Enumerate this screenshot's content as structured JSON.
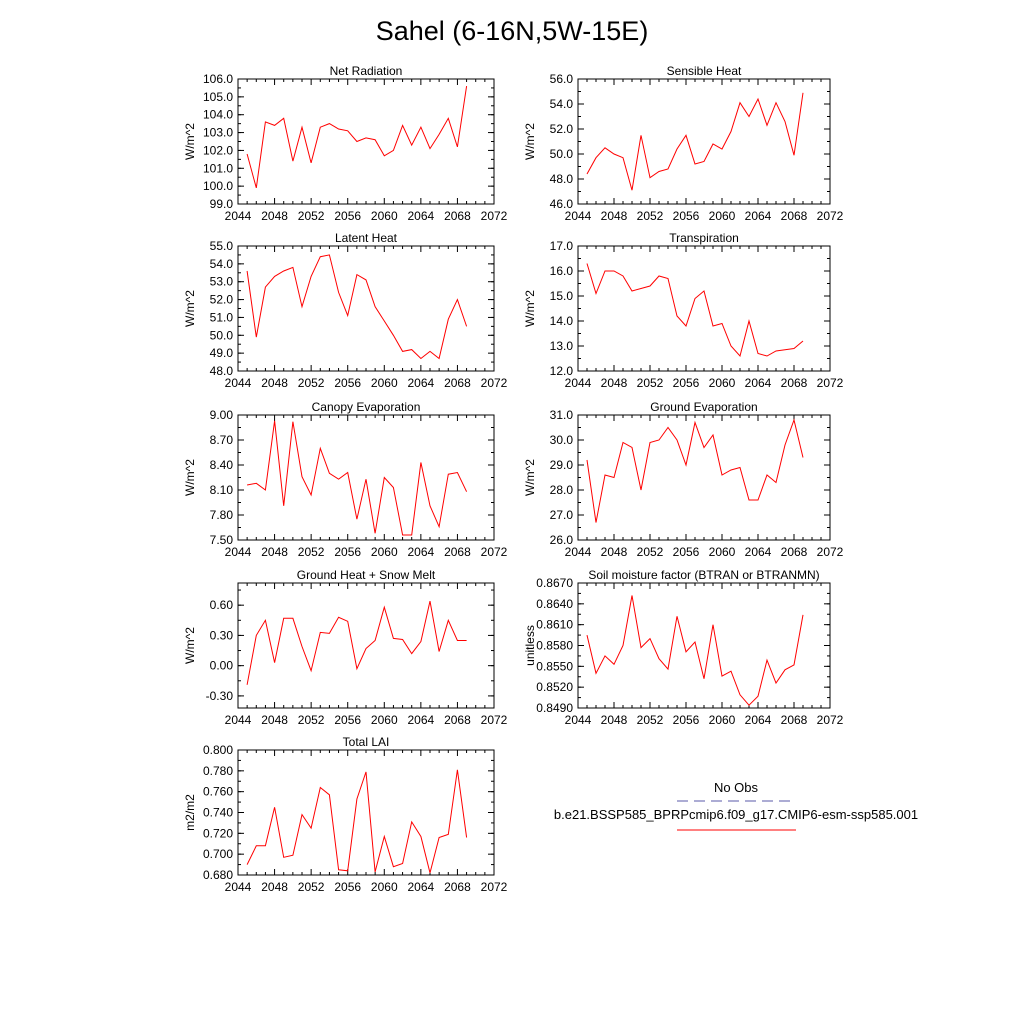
{
  "figure": {
    "title": "Sahel (6-16N,5W-15E)"
  },
  "legend": {
    "entries": [
      {
        "label": "No Obs",
        "color": "#5a5aa8",
        "style": "dashed"
      },
      {
        "label": "b.e21.BSSP585_BPRPcmip6.f09_g17.CMIP6-esm-ssp585.001",
        "color": "#ff0000",
        "style": "solid"
      }
    ]
  },
  "chart_data": [
    {
      "type": "line",
      "title": "Net Radiation",
      "ylabel": "W/m^2",
      "xlim": [
        2044,
        2072
      ],
      "ylim": [
        99.0,
        106.0
      ],
      "xticks": [
        "2044",
        "2048",
        "2052",
        "2056",
        "2060",
        "2064",
        "2068",
        "2072"
      ],
      "yticks": [
        "99.0",
        "100.0",
        "101.0",
        "102.0",
        "103.0",
        "104.0",
        "105.0",
        "106.0"
      ],
      "x": [
        2045,
        2046,
        2047,
        2048,
        2049,
        2050,
        2051,
        2052,
        2053,
        2054,
        2055,
        2056,
        2057,
        2058,
        2059,
        2060,
        2061,
        2062,
        2063,
        2064,
        2065,
        2066,
        2067,
        2068,
        2069
      ],
      "values": [
        101.8,
        99.9,
        103.6,
        103.4,
        103.8,
        101.4,
        103.3,
        101.3,
        103.3,
        103.5,
        103.2,
        103.1,
        102.5,
        102.7,
        102.6,
        101.7,
        102.0,
        103.4,
        102.3,
        103.3,
        102.1,
        102.9,
        103.8,
        102.2,
        105.6
      ],
      "color": "#ff0000"
    },
    {
      "type": "line",
      "title": "Sensible Heat",
      "ylabel": "W/m^2",
      "xlim": [
        2044,
        2072
      ],
      "ylim": [
        46.0,
        56.0
      ],
      "xticks": [
        "2044",
        "2048",
        "2052",
        "2056",
        "2060",
        "2064",
        "2068",
        "2072"
      ],
      "yticks": [
        "46.0",
        "48.0",
        "50.0",
        "52.0",
        "54.0",
        "56.0"
      ],
      "x": [
        2045,
        2046,
        2047,
        2048,
        2049,
        2050,
        2051,
        2052,
        2053,
        2054,
        2055,
        2056,
        2057,
        2058,
        2059,
        2060,
        2061,
        2062,
        2063,
        2064,
        2065,
        2066,
        2067,
        2068,
        2069
      ],
      "values": [
        48.4,
        49.7,
        50.5,
        50.0,
        49.7,
        47.1,
        51.5,
        48.1,
        48.6,
        48.8,
        50.4,
        51.5,
        49.2,
        49.4,
        50.8,
        50.4,
        51.8,
        54.1,
        53.0,
        54.4,
        52.3,
        54.1,
        52.6,
        49.9,
        54.9
      ],
      "color": "#ff0000"
    },
    {
      "type": "line",
      "title": "Latent Heat",
      "ylabel": "W/m^2",
      "xlim": [
        2044,
        2072
      ],
      "ylim": [
        48.0,
        55.0
      ],
      "xticks": [
        "2044",
        "2048",
        "2052",
        "2056",
        "2060",
        "2064",
        "2068",
        "2072"
      ],
      "yticks": [
        "48.0",
        "49.0",
        "50.0",
        "51.0",
        "52.0",
        "53.0",
        "54.0",
        "55.0"
      ],
      "x": [
        2045,
        2046,
        2047,
        2048,
        2049,
        2050,
        2051,
        2052,
        2053,
        2054,
        2055,
        2056,
        2057,
        2058,
        2059,
        2060,
        2061,
        2062,
        2063,
        2064,
        2065,
        2066,
        2067,
        2068,
        2069
      ],
      "values": [
        53.6,
        49.9,
        52.7,
        53.3,
        53.6,
        53.8,
        51.6,
        53.3,
        54.4,
        54.5,
        52.4,
        51.1,
        53.4,
        53.1,
        51.6,
        50.8,
        50.0,
        49.1,
        49.2,
        48.7,
        49.1,
        48.7,
        50.9,
        52.0,
        50.5
      ],
      "color": "#ff0000"
    },
    {
      "type": "line",
      "title": "Transpiration",
      "ylabel": "W/m^2",
      "xlim": [
        2044,
        2072
      ],
      "ylim": [
        12.0,
        17.0
      ],
      "xticks": [
        "2044",
        "2048",
        "2052",
        "2056",
        "2060",
        "2064",
        "2068",
        "2072"
      ],
      "yticks": [
        "12.0",
        "13.0",
        "14.0",
        "15.0",
        "16.0",
        "17.0"
      ],
      "x": [
        2045,
        2046,
        2047,
        2048,
        2049,
        2050,
        2051,
        2052,
        2053,
        2054,
        2055,
        2056,
        2057,
        2058,
        2059,
        2060,
        2061,
        2062,
        2063,
        2064,
        2065,
        2066,
        2067,
        2068,
        2069
      ],
      "values": [
        16.3,
        15.1,
        16.0,
        16.0,
        15.8,
        15.2,
        15.3,
        15.4,
        15.8,
        15.7,
        14.2,
        13.8,
        14.9,
        15.2,
        13.8,
        13.9,
        13.0,
        12.6,
        14.0,
        12.7,
        12.6,
        12.8,
        12.85,
        12.9,
        13.2
      ],
      "color": "#ff0000"
    },
    {
      "type": "line",
      "title": "Canopy Evaporation",
      "ylabel": "W/m^2",
      "xlim": [
        2044,
        2072
      ],
      "ylim": [
        7.5,
        9.0
      ],
      "xticks": [
        "2044",
        "2048",
        "2052",
        "2056",
        "2060",
        "2064",
        "2068",
        "2072"
      ],
      "yticks": [
        "7.50",
        "7.80",
        "8.10",
        "8.40",
        "8.70",
        "9.00"
      ],
      "x": [
        2045,
        2046,
        2047,
        2048,
        2049,
        2050,
        2051,
        2052,
        2053,
        2054,
        2055,
        2056,
        2057,
        2058,
        2059,
        2060,
        2061,
        2062,
        2063,
        2064,
        2065,
        2066,
        2067,
        2068,
        2069
      ],
      "values": [
        8.16,
        8.18,
        8.1,
        8.93,
        7.91,
        8.92,
        8.26,
        8.04,
        8.6,
        8.3,
        8.23,
        8.31,
        7.75,
        8.23,
        7.58,
        8.25,
        8.13,
        7.56,
        7.56,
        8.43,
        7.91,
        7.66,
        8.29,
        8.31,
        8.08
      ],
      "color": "#ff0000"
    },
    {
      "type": "line",
      "title": "Ground Evaporation",
      "ylabel": "W/m^2",
      "xlim": [
        2044,
        2072
      ],
      "ylim": [
        26.0,
        31.0
      ],
      "xticks": [
        "2044",
        "2048",
        "2052",
        "2056",
        "2060",
        "2064",
        "2068",
        "2072"
      ],
      "yticks": [
        "26.0",
        "27.0",
        "28.0",
        "29.0",
        "30.0",
        "31.0"
      ],
      "x": [
        2045,
        2046,
        2047,
        2048,
        2049,
        2050,
        2051,
        2052,
        2053,
        2054,
        2055,
        2056,
        2057,
        2058,
        2059,
        2060,
        2061,
        2062,
        2063,
        2064,
        2065,
        2066,
        2067,
        2068,
        2069
      ],
      "values": [
        29.2,
        26.7,
        28.6,
        28.5,
        29.9,
        29.7,
        28.0,
        29.9,
        30.0,
        30.5,
        30.0,
        29.0,
        30.7,
        29.7,
        30.2,
        28.6,
        28.8,
        28.9,
        27.6,
        27.6,
        28.6,
        28.3,
        29.8,
        30.8,
        29.3
      ],
      "color": "#ff0000"
    },
    {
      "type": "line",
      "title": "Ground Heat + Snow Melt",
      "ylabel": "W/m^2",
      "xlim": [
        2044,
        2072
      ],
      "ylim": [
        -0.42,
        0.82
      ],
      "xticks": [
        "2044",
        "2048",
        "2052",
        "2056",
        "2060",
        "2064",
        "2068",
        "2072"
      ],
      "yticks": [
        "-0.30",
        "0.00",
        "0.30",
        "0.60"
      ],
      "ytick_values": [
        -0.3,
        0.0,
        0.3,
        0.6
      ],
      "x": [
        2045,
        2046,
        2047,
        2048,
        2049,
        2050,
        2051,
        2052,
        2053,
        2054,
        2055,
        2056,
        2057,
        2058,
        2059,
        2060,
        2061,
        2062,
        2063,
        2064,
        2065,
        2066,
        2067,
        2068,
        2069
      ],
      "values": [
        -0.19,
        0.3,
        0.45,
        0.03,
        0.47,
        0.47,
        0.19,
        -0.05,
        0.33,
        0.32,
        0.48,
        0.44,
        -0.03,
        0.17,
        0.25,
        0.58,
        0.27,
        0.26,
        0.12,
        0.24,
        0.64,
        0.14,
        0.45,
        0.25,
        0.25
      ],
      "color": "#ff0000"
    },
    {
      "type": "line",
      "title": "Soil moisture factor (BTRAN or BTRANMN)",
      "ylabel": "unitless",
      "xlim": [
        2044,
        2072
      ],
      "ylim": [
        0.849,
        0.867
      ],
      "xticks": [
        "2044",
        "2048",
        "2052",
        "2056",
        "2060",
        "2064",
        "2068",
        "2072"
      ],
      "yticks": [
        "0.8490",
        "0.8520",
        "0.8550",
        "0.8580",
        "0.8610",
        "0.8640",
        "0.8670"
      ],
      "x": [
        2045,
        2046,
        2047,
        2048,
        2049,
        2050,
        2051,
        2052,
        2053,
        2054,
        2055,
        2056,
        2057,
        2058,
        2059,
        2060,
        2061,
        2062,
        2063,
        2064,
        2065,
        2066,
        2067,
        2068,
        2069
      ],
      "values": [
        0.8595,
        0.854,
        0.8565,
        0.8553,
        0.858,
        0.8652,
        0.8577,
        0.859,
        0.8561,
        0.8546,
        0.8622,
        0.8571,
        0.8585,
        0.8532,
        0.861,
        0.8536,
        0.8543,
        0.8509,
        0.8494,
        0.8507,
        0.8559,
        0.8526,
        0.8545,
        0.8552,
        0.8624
      ],
      "color": "#ff0000"
    },
    {
      "type": "line",
      "title": "Total LAI",
      "ylabel": "m2/m2",
      "xlim": [
        2044,
        2072
      ],
      "ylim": [
        0.68,
        0.8
      ],
      "xticks": [
        "2044",
        "2048",
        "2052",
        "2056",
        "2060",
        "2064",
        "2068",
        "2072"
      ],
      "yticks": [
        "0.680",
        "0.700",
        "0.720",
        "0.740",
        "0.760",
        "0.780",
        "0.800"
      ],
      "x": [
        2045,
        2046,
        2047,
        2048,
        2049,
        2050,
        2051,
        2052,
        2053,
        2054,
        2055,
        2056,
        2057,
        2058,
        2059,
        2060,
        2061,
        2062,
        2063,
        2064,
        2065,
        2066,
        2067,
        2068,
        2069
      ],
      "values": [
        0.69,
        0.708,
        0.708,
        0.745,
        0.697,
        0.699,
        0.738,
        0.725,
        0.764,
        0.757,
        0.685,
        0.684,
        0.753,
        0.779,
        0.683,
        0.717,
        0.688,
        0.691,
        0.731,
        0.717,
        0.682,
        0.716,
        0.719,
        0.781,
        0.716
      ],
      "color": "#ff0000"
    }
  ]
}
